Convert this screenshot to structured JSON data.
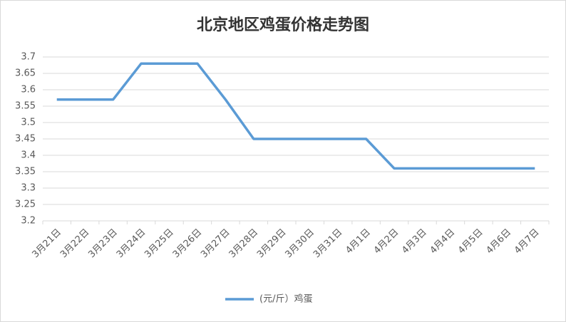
{
  "chart_data": {
    "type": "line",
    "title": "北京地区鸡蛋价格走势图",
    "categories": [
      "3月21日",
      "3月22日",
      "3月23日",
      "3月24日",
      "3月25日",
      "3月26日",
      "3月27日",
      "3月28日",
      "3月29日",
      "3月30日",
      "3月31日",
      "4月1日",
      "4月2日",
      "4月3日",
      "4月4日",
      "4月5日",
      "4月6日",
      "4月7日"
    ],
    "series": [
      {
        "name": "(元/斤）鸡蛋",
        "color": "#5b9bd5",
        "values": [
          3.57,
          3.57,
          3.57,
          3.68,
          3.68,
          3.68,
          3.57,
          3.45,
          3.45,
          3.45,
          3.45,
          3.45,
          3.36,
          3.36,
          3.36,
          3.36,
          3.36,
          3.36
        ]
      }
    ],
    "ylim": [
      3.2,
      3.7
    ],
    "yticks": [
      3.2,
      3.25,
      3.3,
      3.35,
      3.4,
      3.45,
      3.5,
      3.55,
      3.6,
      3.65,
      3.7
    ],
    "grid": true,
    "legend": "bottom"
  }
}
